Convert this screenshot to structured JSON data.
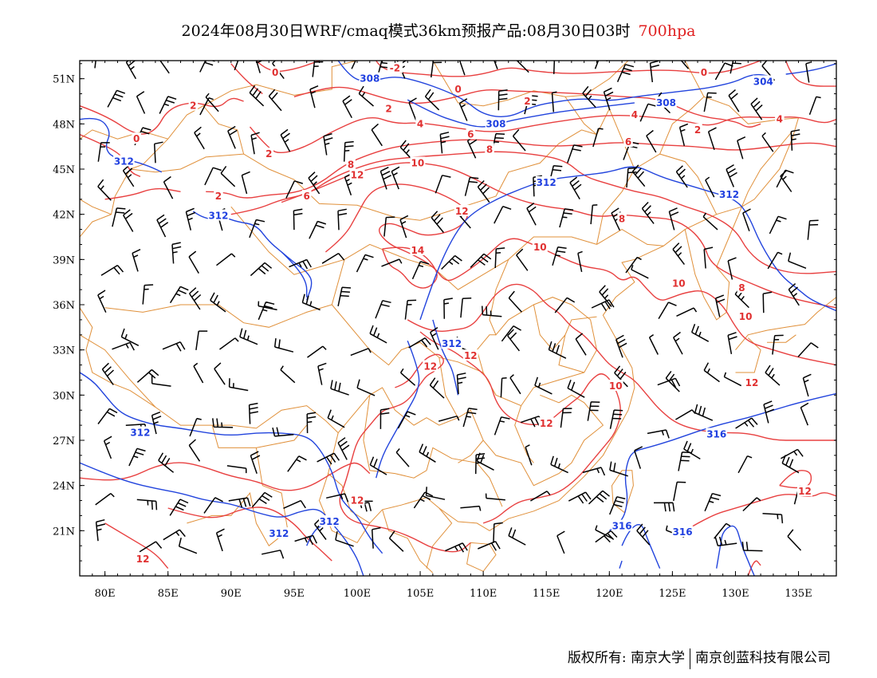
{
  "title": {
    "main": "2024年08月30日WRF/cmaq模式36km预报产品:08月30日03时",
    "level": "700hpa"
  },
  "map": {
    "lat_labels": [
      "51N",
      "48N",
      "45N",
      "42N",
      "39N",
      "36N",
      "33N",
      "30N",
      "27N",
      "24N",
      "21N"
    ],
    "lon_labels": [
      "80E",
      "85E",
      "90E",
      "95E",
      "100E",
      "105E",
      "110E",
      "115E",
      "120E",
      "125E",
      "130E",
      "135E"
    ],
    "lon_range": [
      78,
      138
    ],
    "lat_range": [
      18,
      52.2
    ],
    "colors": {
      "temperature_contour": "#e84040",
      "height_contour": "#2244dd",
      "border": "#e0903a",
      "wind_barb": "#000000"
    },
    "temperature_labels": [
      {
        "text": "-2",
        "lon": 103.0,
        "lat": 51.7
      },
      {
        "text": "0",
        "lon": 93.5,
        "lat": 51.4
      },
      {
        "text": "0",
        "lon": 108.0,
        "lat": 50.3
      },
      {
        "text": "0",
        "lon": 127.5,
        "lat": 51.4
      },
      {
        "text": "2",
        "lon": 87.0,
        "lat": 49.2
      },
      {
        "text": "2",
        "lon": 102.5,
        "lat": 49.0
      },
      {
        "text": "2",
        "lon": 113.5,
        "lat": 49.5
      },
      {
        "text": "2",
        "lon": 127.0,
        "lat": 47.6
      },
      {
        "text": "2",
        "lon": 93.0,
        "lat": 46.0
      },
      {
        "text": "2",
        "lon": 89.0,
        "lat": 43.2
      },
      {
        "text": "0",
        "lon": 82.5,
        "lat": 47.0
      },
      {
        "text": "4",
        "lon": 105.0,
        "lat": 48.0
      },
      {
        "text": "4",
        "lon": 122.0,
        "lat": 48.6
      },
      {
        "text": "4",
        "lon": 133.5,
        "lat": 48.3
      },
      {
        "text": "6",
        "lon": 109.0,
        "lat": 47.3
      },
      {
        "text": "6",
        "lon": 121.5,
        "lat": 46.8
      },
      {
        "text": "6",
        "lon": 96.0,
        "lat": 43.2
      },
      {
        "text": "8",
        "lon": 110.5,
        "lat": 46.3
      },
      {
        "text": "8",
        "lon": 99.5,
        "lat": 45.3
      },
      {
        "text": "8",
        "lon": 121.0,
        "lat": 41.7
      },
      {
        "text": "8",
        "lon": 130.5,
        "lat": 37.1
      },
      {
        "text": "10",
        "lon": 104.8,
        "lat": 45.4
      },
      {
        "text": "10",
        "lon": 114.5,
        "lat": 39.8
      },
      {
        "text": "10",
        "lon": 125.5,
        "lat": 37.4
      },
      {
        "text": "10",
        "lon": 130.8,
        "lat": 35.2
      },
      {
        "text": "10",
        "lon": 120.5,
        "lat": 30.6
      },
      {
        "text": "12",
        "lon": 100.0,
        "lat": 44.6
      },
      {
        "text": "12",
        "lon": 108.3,
        "lat": 42.2
      },
      {
        "text": "12",
        "lon": 109.0,
        "lat": 32.6
      },
      {
        "text": "12",
        "lon": 105.8,
        "lat": 31.9
      },
      {
        "text": "12",
        "lon": 131.3,
        "lat": 30.8
      },
      {
        "text": "12",
        "lon": 115.0,
        "lat": 28.1
      },
      {
        "text": "12",
        "lon": 100.0,
        "lat": 23.0
      },
      {
        "text": "12",
        "lon": 83.0,
        "lat": 19.1
      },
      {
        "text": "12",
        "lon": 135.5,
        "lat": 23.6
      },
      {
        "text": "14",
        "lon": 104.8,
        "lat": 39.6
      }
    ],
    "height_labels": [
      {
        "text": "308",
        "lon": 101.0,
        "lat": 51.0
      },
      {
        "text": "308",
        "lon": 124.5,
        "lat": 49.4
      },
      {
        "text": "304",
        "lon": 132.2,
        "lat": 50.8
      },
      {
        "text": "308",
        "lon": 111.0,
        "lat": 48.0
      },
      {
        "text": "312",
        "lon": 81.5,
        "lat": 45.5
      },
      {
        "text": "312",
        "lon": 115.0,
        "lat": 44.1
      },
      {
        "text": "312",
        "lon": 129.5,
        "lat": 43.3
      },
      {
        "text": "312",
        "lon": 89.0,
        "lat": 41.9
      },
      {
        "text": "312",
        "lon": 107.5,
        "lat": 33.4
      },
      {
        "text": "312",
        "lon": 82.8,
        "lat": 27.5
      },
      {
        "text": "312",
        "lon": 93.8,
        "lat": 20.8
      },
      {
        "text": "312",
        "lon": 97.8,
        "lat": 21.6
      },
      {
        "text": "316",
        "lon": 128.5,
        "lat": 27.4
      },
      {
        "text": "316",
        "lon": 121.0,
        "lat": 21.3
      },
      {
        "text": "316",
        "lon": 125.8,
        "lat": 20.9
      }
    ]
  },
  "copyright": {
    "holder_label": "版权所有:",
    "org1": "南京大学",
    "org2": "南京创蓝科技有限公司"
  }
}
